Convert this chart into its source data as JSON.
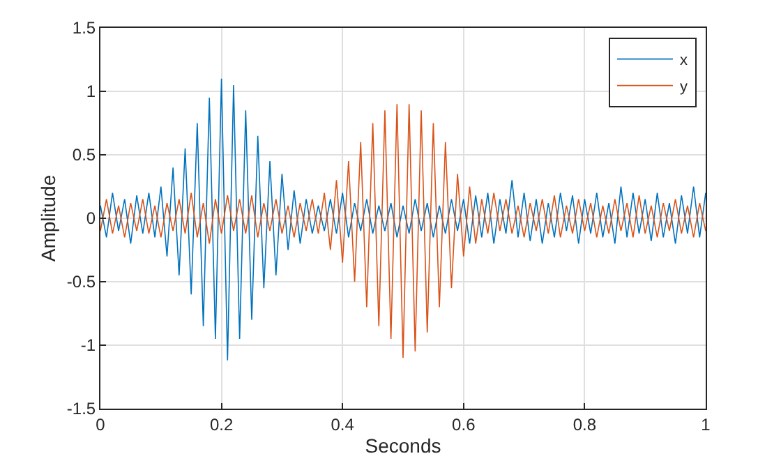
{
  "chart_data": {
    "type": "line",
    "xlabel": "Seconds",
    "ylabel": "Amplitude",
    "x": [
      0,
      0.01,
      0.02,
      0.03,
      0.04,
      0.05,
      0.06,
      0.07,
      0.08,
      0.09,
      0.1,
      0.11,
      0.12,
      0.13,
      0.14,
      0.15,
      0.16,
      0.17,
      0.18,
      0.19,
      0.2,
      0.21,
      0.22,
      0.23,
      0.24,
      0.25,
      0.26,
      0.27,
      0.28,
      0.29,
      0.3,
      0.31,
      0.32,
      0.33,
      0.34,
      0.35,
      0.36,
      0.37,
      0.38,
      0.39,
      0.4,
      0.41,
      0.42,
      0.43,
      0.44,
      0.45,
      0.46,
      0.47,
      0.48,
      0.49,
      0.5,
      0.51,
      0.52,
      0.53,
      0.54,
      0.55,
      0.56,
      0.57,
      0.58,
      0.59,
      0.6,
      0.61,
      0.62,
      0.63,
      0.64,
      0.65,
      0.66,
      0.67,
      0.68,
      0.69,
      0.7,
      0.71,
      0.72,
      0.73,
      0.74,
      0.75,
      0.76,
      0.77,
      0.78,
      0.79,
      0.8,
      0.81,
      0.82,
      0.83,
      0.84,
      0.85,
      0.86,
      0.87,
      0.88,
      0.89,
      0.9,
      0.91,
      0.92,
      0.93,
      0.94,
      0.95,
      0.96,
      0.97,
      0.98,
      0.99,
      1
    ],
    "series": [
      {
        "name": "x",
        "color": "#0072bd",
        "values": [
          0.1,
          -0.15,
          0.2,
          -0.1,
          0.15,
          -0.2,
          0.18,
          -0.12,
          0.2,
          -0.15,
          0.25,
          -0.3,
          0.4,
          -0.45,
          0.55,
          -0.6,
          0.75,
          -0.85,
          0.95,
          -0.95,
          1.1,
          -1.12,
          1.05,
          -0.95,
          0.85,
          -0.8,
          0.65,
          -0.55,
          0.45,
          -0.45,
          0.35,
          -0.25,
          0.22,
          -0.2,
          0.15,
          -0.12,
          0.1,
          -0.1,
          0.15,
          -0.12,
          0.2,
          -0.15,
          0.12,
          -0.1,
          0.15,
          -0.12,
          0.1,
          -0.1,
          0.12,
          -0.15,
          0.1,
          -0.12,
          0.15,
          -0.1,
          0.12,
          -0.15,
          0.1,
          -0.12,
          0.15,
          -0.1,
          0.15,
          -0.2,
          0.18,
          -0.15,
          0.2,
          -0.2,
          0.15,
          -0.12,
          0.3,
          -0.15,
          0.2,
          -0.18,
          0.15,
          -0.2,
          0.12,
          -0.15,
          0.2,
          -0.1,
          0.18,
          -0.2,
          0.15,
          -0.12,
          0.2,
          -0.15,
          0.12,
          -0.2,
          0.25,
          -0.15,
          0.2,
          -0.12,
          0.15,
          -0.18,
          0.2,
          -0.15,
          0.12,
          -0.2,
          0.18,
          -0.12,
          0.25,
          -0.15,
          0.2
        ]
      },
      {
        "name": "y",
        "color": "#d95319",
        "values": [
          -0.1,
          0.15,
          -0.12,
          0.1,
          -0.15,
          0.12,
          -0.1,
          0.15,
          -0.12,
          0.1,
          -0.15,
          0.12,
          -0.1,
          0.15,
          -0.12,
          0.2,
          -0.15,
          0.12,
          -0.2,
          0.15,
          -0.12,
          0.18,
          -0.1,
          0.15,
          -0.12,
          0.18,
          -0.15,
          0.12,
          -0.1,
          0.15,
          -0.12,
          0.1,
          -0.15,
          0.12,
          -0.1,
          0.15,
          -0.12,
          0.2,
          -0.25,
          0.3,
          -0.35,
          0.45,
          -0.5,
          0.6,
          -0.7,
          0.75,
          -0.85,
          0.85,
          -0.95,
          0.9,
          -1.1,
          0.9,
          -1.05,
          0.85,
          -0.9,
          0.75,
          -0.7,
          0.6,
          -0.55,
          0.35,
          -0.3,
          0.25,
          -0.2,
          0.15,
          -0.12,
          0.2,
          -0.1,
          0.15,
          -0.12,
          0.1,
          -0.15,
          0.12,
          -0.1,
          0.15,
          -0.12,
          0.18,
          -0.15,
          0.1,
          -0.12,
          0.15,
          -0.1,
          0.12,
          -0.15,
          0.1,
          -0.12,
          0.15,
          -0.1,
          0.12,
          -0.15,
          0.18,
          -0.12,
          0.1,
          -0.15,
          0.12,
          -0.1,
          0.15,
          -0.12,
          0.1,
          -0.15,
          0.12,
          -0.1
        ]
      }
    ],
    "xlim": [
      0,
      1
    ],
    "xticks": [
      0,
      0.2,
      0.4,
      0.6,
      0.8,
      1
    ],
    "ylim": [
      -1.5,
      1.5
    ],
    "yticks": [
      -1.5,
      -1,
      -0.5,
      0,
      0.5,
      1,
      1.5
    ],
    "grid": true,
    "legend": "top right",
    "marker": "none",
    "line_style": "solid"
  }
}
